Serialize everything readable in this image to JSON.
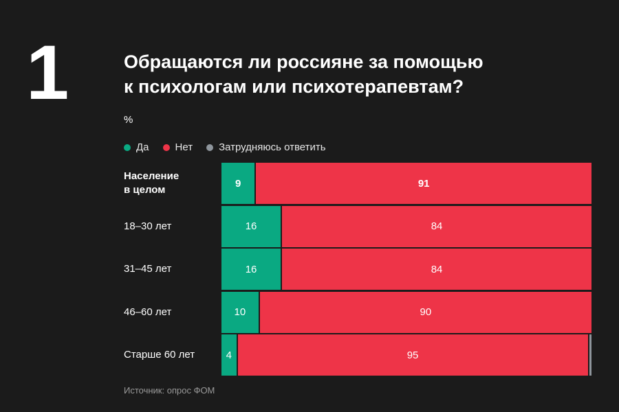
{
  "header": {
    "number": "1",
    "title_line1": "Обращаются ли россияне за помощью",
    "title_line2": "к психологам или психотерапевтам?",
    "unit": "%"
  },
  "colors": {
    "yes": "#0aa982",
    "no": "#ee3448",
    "unsure": "#8e959c"
  },
  "legend": [
    {
      "label": "Да",
      "color": "#0aa982"
    },
    {
      "label": "Нет",
      "color": "#ee3448"
    },
    {
      "label": "Затрудняюсь ответить",
      "color": "#8e959c"
    }
  ],
  "chart_data": {
    "type": "bar",
    "orientation": "horizontal",
    "stacked": true,
    "categories": [
      [
        "Население",
        "в целом"
      ],
      [
        "18–30 лет"
      ],
      [
        "31–45 лет"
      ],
      [
        "46–60 лет"
      ],
      [
        "Старше 60 лет"
      ]
    ],
    "series": [
      {
        "name": "Да",
        "values": [
          9,
          16,
          16,
          10,
          4
        ]
      },
      {
        "name": "Нет",
        "values": [
          91,
          84,
          84,
          90,
          95
        ]
      },
      {
        "name": "Затрудняюсь ответить",
        "values": [
          0,
          0,
          0,
          0,
          1
        ]
      }
    ],
    "xlim": [
      0,
      100
    ],
    "legend_position": "top-left"
  },
  "footer": {
    "source": "Источник: опрос ФОМ"
  }
}
